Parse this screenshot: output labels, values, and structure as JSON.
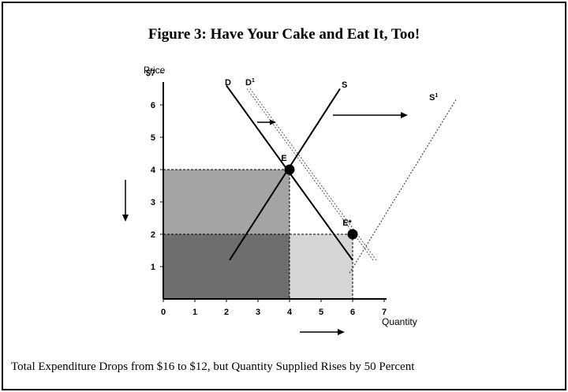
{
  "chart_data": {
    "type": "line",
    "title": "Figure 3: Have Your Cake and Eat It, Too!",
    "caption": "Total Expenditure Drops from $16 to $12, but Quantity Supplied Rises by 50 Percent",
    "ylabel": "Price",
    "xlabel": "Quantity",
    "xlim": [
      0,
      7
    ],
    "ylim": [
      0,
      7
    ],
    "x_ticks": [
      "0",
      "1",
      "2",
      "3",
      "4",
      "5",
      "6",
      "7"
    ],
    "y_ticks": [
      "1",
      "2",
      "3",
      "4",
      "5",
      "6",
      "$7"
    ],
    "series": [
      {
        "name": "D",
        "style": "solid",
        "x": [
          2.0,
          6.0
        ],
        "y": [
          6.6,
          1.2
        ]
      },
      {
        "name": "D1",
        "style": "dotted-double",
        "x": [
          2.7,
          6.7
        ],
        "y": [
          6.5,
          1.2
        ]
      },
      {
        "name": "S",
        "style": "solid",
        "x": [
          2.1,
          5.6
        ],
        "y": [
          1.2,
          6.5
        ]
      },
      {
        "name": "S1",
        "style": "dotted",
        "x": [
          5.9,
          9.3
        ],
        "y": [
          0.8,
          6.2
        ]
      }
    ],
    "points": [
      {
        "label": "E",
        "x": 4,
        "y": 4
      },
      {
        "label": "E*",
        "x": 6,
        "y": 2
      }
    ],
    "shaded_regions": [
      {
        "x": [
          0,
          4
        ],
        "y": [
          2,
          4
        ],
        "color": "#a4a4a4"
      },
      {
        "x": [
          0,
          4
        ],
        "y": [
          0,
          2
        ],
        "color": "#6e6e6e"
      },
      {
        "x": [
          4,
          6
        ],
        "y": [
          0,
          2
        ],
        "color": "#d6d6d6"
      }
    ],
    "grid": false,
    "colors": {
      "line": "#000000",
      "dotted": "#555555"
    }
  }
}
